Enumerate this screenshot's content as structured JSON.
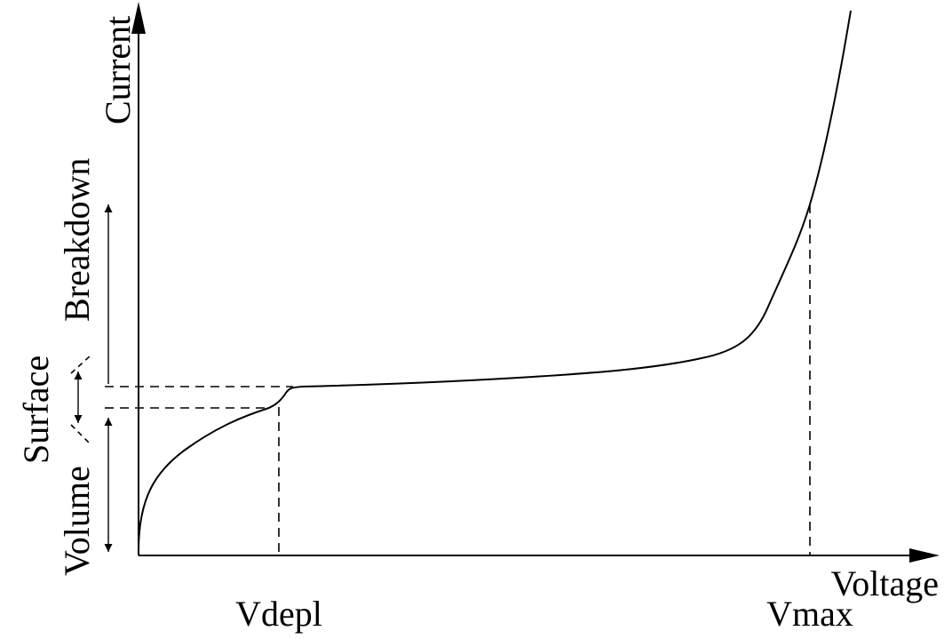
{
  "axes": {
    "x_label": "Voltage",
    "y_label": "Current"
  },
  "markers": {
    "vdepl": "Vdepl",
    "vmax": "Vmax"
  },
  "regions": {
    "volume": "Volume",
    "surface": "Surface",
    "breakdown": "Breakdown"
  },
  "colors": {
    "ink": "#000000",
    "background": "#ffffff"
  }
}
